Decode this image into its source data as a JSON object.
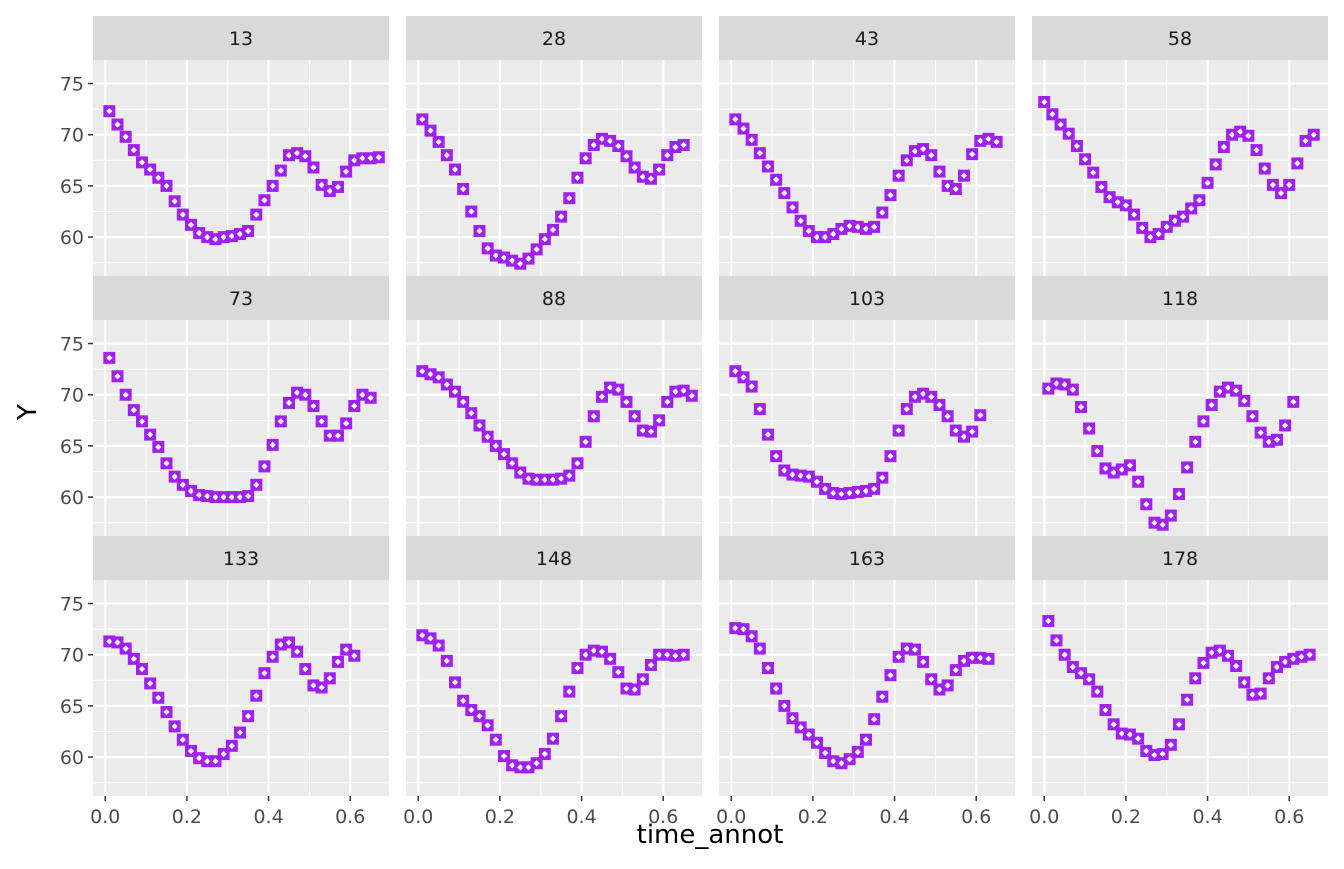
{
  "chart_data": {
    "type": "scatter",
    "facet_layout": {
      "rows": 3,
      "cols": 4
    },
    "xlabel": "time_annot",
    "ylabel": "Y",
    "xlim": [
      -0.03,
      0.695
    ],
    "ylim": [
      56.2,
      77.3
    ],
    "x_ticks": [
      0.0,
      0.2,
      0.4,
      0.6
    ],
    "x_tick_labels": [
      "0.0",
      "0.2",
      "0.4",
      "0.6"
    ],
    "y_ticks": [
      60,
      65,
      70,
      75
    ],
    "y_tick_labels": [
      "60",
      "65",
      "70",
      "75"
    ],
    "grid": true,
    "colors": {
      "point": "#A020F0",
      "panel_bg": "#EBEBEB",
      "strip_bg": "#D9D9D9",
      "grid": "#FFFFFF",
      "marker_center": "#FFFFFF"
    },
    "series": [
      {
        "panel": "13",
        "x": [
          0.01,
          0.03,
          0.05,
          0.07,
          0.09,
          0.11,
          0.13,
          0.15,
          0.17,
          0.19,
          0.21,
          0.23,
          0.25,
          0.27,
          0.29,
          0.31,
          0.33,
          0.35,
          0.37,
          0.39,
          0.41,
          0.43,
          0.45,
          0.47,
          0.49,
          0.51,
          0.53,
          0.55,
          0.57,
          0.59,
          0.61,
          0.63,
          0.65,
          0.67
        ],
        "y": [
          72.3,
          71.0,
          69.8,
          68.5,
          67.3,
          66.6,
          65.8,
          65.0,
          63.5,
          62.2,
          61.2,
          60.4,
          60.0,
          59.8,
          60.0,
          60.1,
          60.3,
          60.6,
          62.2,
          63.6,
          65.0,
          66.5,
          68.0,
          68.2,
          67.9,
          66.8,
          65.1,
          64.5,
          64.9,
          66.4,
          67.5,
          67.7,
          67.7,
          67.8
        ]
      },
      {
        "panel": "28",
        "x": [
          0.01,
          0.03,
          0.05,
          0.07,
          0.09,
          0.11,
          0.13,
          0.15,
          0.17,
          0.19,
          0.21,
          0.23,
          0.25,
          0.27,
          0.29,
          0.31,
          0.33,
          0.35,
          0.37,
          0.39,
          0.41,
          0.43,
          0.45,
          0.47,
          0.49,
          0.51,
          0.53,
          0.55,
          0.57,
          0.59,
          0.61,
          0.63,
          0.65
        ],
        "y": [
          71.5,
          70.4,
          69.3,
          68.0,
          66.6,
          64.7,
          62.5,
          60.6,
          58.9,
          58.2,
          58.0,
          57.7,
          57.4,
          57.9,
          58.8,
          59.8,
          60.7,
          62.0,
          63.8,
          65.8,
          67.7,
          69.0,
          69.6,
          69.4,
          68.9,
          67.9,
          66.8,
          65.9,
          65.7,
          66.6,
          68.0,
          68.8,
          69.0
        ]
      },
      {
        "panel": "43",
        "x": [
          0.01,
          0.03,
          0.05,
          0.07,
          0.09,
          0.11,
          0.13,
          0.15,
          0.17,
          0.19,
          0.21,
          0.23,
          0.25,
          0.27,
          0.29,
          0.31,
          0.33,
          0.35,
          0.37,
          0.39,
          0.41,
          0.43,
          0.45,
          0.47,
          0.49,
          0.51,
          0.53,
          0.55,
          0.57,
          0.59,
          0.61,
          0.63,
          0.65
        ],
        "y": [
          71.5,
          70.6,
          69.5,
          68.2,
          66.9,
          65.6,
          64.3,
          62.9,
          61.6,
          60.6,
          60.0,
          60.0,
          60.3,
          60.8,
          61.1,
          61.0,
          60.8,
          61.0,
          62.4,
          64.1,
          66.0,
          67.5,
          68.4,
          68.6,
          68.0,
          66.4,
          65.0,
          64.7,
          66.0,
          68.1,
          69.4,
          69.6,
          69.3
        ]
      },
      {
        "panel": "58",
        "x": [
          0.0,
          0.02,
          0.04,
          0.06,
          0.08,
          0.1,
          0.12,
          0.14,
          0.16,
          0.18,
          0.2,
          0.22,
          0.24,
          0.26,
          0.28,
          0.3,
          0.32,
          0.34,
          0.36,
          0.38,
          0.4,
          0.42,
          0.44,
          0.46,
          0.48,
          0.5,
          0.52,
          0.54,
          0.56,
          0.58,
          0.6,
          0.62,
          0.64,
          0.66
        ],
        "y": [
          73.2,
          72.0,
          71.0,
          70.1,
          68.9,
          67.6,
          66.3,
          64.9,
          63.9,
          63.4,
          63.1,
          62.2,
          60.9,
          60.0,
          60.3,
          61.0,
          61.6,
          62.0,
          62.8,
          63.6,
          65.3,
          67.1,
          68.8,
          70.0,
          70.3,
          69.9,
          68.5,
          66.7,
          65.1,
          64.3,
          65.1,
          67.2,
          69.4,
          70.0
        ]
      },
      {
        "panel": "73",
        "x": [
          0.01,
          0.03,
          0.05,
          0.07,
          0.09,
          0.11,
          0.13,
          0.15,
          0.17,
          0.19,
          0.21,
          0.23,
          0.25,
          0.27,
          0.29,
          0.31,
          0.33,
          0.35,
          0.37,
          0.39,
          0.41,
          0.43,
          0.45,
          0.47,
          0.49,
          0.51,
          0.53,
          0.55,
          0.57,
          0.59,
          0.61,
          0.63,
          0.65
        ],
        "y": [
          73.6,
          71.8,
          70.0,
          68.5,
          67.4,
          66.1,
          64.9,
          63.3,
          62.0,
          61.2,
          60.6,
          60.2,
          60.1,
          60.0,
          60.0,
          60.0,
          60.0,
          60.1,
          61.2,
          63.0,
          65.1,
          67.4,
          69.2,
          70.2,
          70.0,
          68.9,
          67.4,
          66.0,
          66.0,
          67.2,
          68.9,
          70.0,
          69.7
        ]
      },
      {
        "panel": "88",
        "x": [
          0.01,
          0.03,
          0.05,
          0.07,
          0.09,
          0.11,
          0.13,
          0.15,
          0.17,
          0.19,
          0.21,
          0.23,
          0.25,
          0.27,
          0.29,
          0.31,
          0.33,
          0.35,
          0.37,
          0.39,
          0.41,
          0.43,
          0.45,
          0.47,
          0.49,
          0.51,
          0.53,
          0.55,
          0.57,
          0.59,
          0.61,
          0.63,
          0.65,
          0.67
        ],
        "y": [
          72.3,
          72.0,
          71.7,
          71.0,
          70.3,
          69.3,
          68.2,
          67.0,
          65.9,
          65.0,
          64.2,
          63.3,
          62.4,
          61.8,
          61.7,
          61.7,
          61.7,
          61.8,
          62.1,
          63.3,
          65.4,
          67.9,
          69.8,
          70.7,
          70.5,
          69.3,
          67.9,
          66.5,
          66.4,
          67.5,
          69.3,
          70.3,
          70.4,
          69.9
        ]
      },
      {
        "panel": "103",
        "x": [
          0.01,
          0.03,
          0.05,
          0.07,
          0.09,
          0.11,
          0.13,
          0.15,
          0.17,
          0.19,
          0.21,
          0.23,
          0.25,
          0.27,
          0.29,
          0.31,
          0.33,
          0.35,
          0.37,
          0.39,
          0.41,
          0.43,
          0.45,
          0.47,
          0.49,
          0.51,
          0.53,
          0.55,
          0.57,
          0.59,
          0.61
        ],
        "y": [
          72.3,
          71.7,
          70.8,
          68.6,
          66.1,
          64.0,
          62.6,
          62.2,
          62.1,
          62.0,
          61.5,
          60.8,
          60.4,
          60.3,
          60.4,
          60.5,
          60.6,
          60.8,
          61.9,
          64.0,
          66.5,
          68.6,
          69.8,
          70.1,
          69.8,
          69.0,
          67.9,
          66.5,
          65.9,
          66.4,
          68.0
        ]
      },
      {
        "panel": "118",
        "x": [
          0.01,
          0.03,
          0.05,
          0.07,
          0.09,
          0.11,
          0.13,
          0.15,
          0.17,
          0.19,
          0.21,
          0.23,
          0.25,
          0.27,
          0.29,
          0.31,
          0.33,
          0.35,
          0.37,
          0.39,
          0.41,
          0.43,
          0.45,
          0.47,
          0.49,
          0.51,
          0.53,
          0.55,
          0.57,
          0.59,
          0.61
        ],
        "y": [
          70.6,
          71.1,
          71.0,
          70.5,
          68.8,
          66.7,
          64.5,
          62.8,
          62.4,
          62.7,
          63.1,
          61.5,
          59.3,
          57.5,
          57.3,
          58.2,
          60.3,
          62.9,
          65.4,
          67.4,
          69.0,
          70.3,
          70.7,
          70.4,
          69.4,
          67.9,
          66.3,
          65.4,
          65.6,
          67.0,
          69.3
        ]
      },
      {
        "panel": "133",
        "x": [
          0.01,
          0.03,
          0.05,
          0.07,
          0.09,
          0.11,
          0.13,
          0.15,
          0.17,
          0.19,
          0.21,
          0.23,
          0.25,
          0.27,
          0.29,
          0.31,
          0.33,
          0.35,
          0.37,
          0.39,
          0.41,
          0.43,
          0.45,
          0.47,
          0.49,
          0.51,
          0.53,
          0.55,
          0.57,
          0.59,
          0.61
        ],
        "y": [
          71.3,
          71.2,
          70.6,
          69.6,
          68.6,
          67.2,
          65.8,
          64.4,
          63.0,
          61.7,
          60.6,
          59.9,
          59.6,
          59.6,
          60.3,
          61.1,
          62.4,
          64.0,
          66.0,
          68.2,
          69.8,
          71.0,
          71.2,
          70.3,
          68.6,
          67.0,
          66.8,
          67.7,
          69.3,
          70.5,
          69.9
        ]
      },
      {
        "panel": "148",
        "x": [
          0.01,
          0.03,
          0.05,
          0.07,
          0.09,
          0.11,
          0.13,
          0.15,
          0.17,
          0.19,
          0.21,
          0.23,
          0.25,
          0.27,
          0.29,
          0.31,
          0.33,
          0.35,
          0.37,
          0.39,
          0.41,
          0.43,
          0.45,
          0.47,
          0.49,
          0.51,
          0.53,
          0.55,
          0.57,
          0.59,
          0.61,
          0.63,
          0.65
        ],
        "y": [
          71.9,
          71.6,
          70.9,
          69.4,
          67.3,
          65.5,
          64.6,
          64.0,
          63.1,
          61.7,
          60.1,
          59.2,
          59.0,
          59.0,
          59.4,
          60.3,
          61.8,
          64.0,
          66.4,
          68.7,
          70.0,
          70.4,
          70.3,
          69.6,
          68.3,
          66.7,
          66.6,
          67.6,
          69.0,
          70.0,
          70.0,
          69.9,
          70.0
        ]
      },
      {
        "panel": "163",
        "x": [
          0.01,
          0.03,
          0.05,
          0.07,
          0.09,
          0.11,
          0.13,
          0.15,
          0.17,
          0.19,
          0.21,
          0.23,
          0.25,
          0.27,
          0.29,
          0.31,
          0.33,
          0.35,
          0.37,
          0.39,
          0.41,
          0.43,
          0.45,
          0.47,
          0.49,
          0.51,
          0.53,
          0.55,
          0.57,
          0.59,
          0.61,
          0.63
        ],
        "y": [
          72.6,
          72.5,
          71.8,
          70.6,
          68.7,
          66.7,
          65.0,
          63.8,
          62.9,
          62.2,
          61.4,
          60.4,
          59.6,
          59.4,
          59.8,
          60.5,
          61.7,
          63.7,
          65.9,
          68.0,
          69.8,
          70.6,
          70.5,
          69.3,
          67.6,
          66.6,
          67.0,
          68.5,
          69.4,
          69.7,
          69.7,
          69.6
        ]
      },
      {
        "panel": "178",
        "x": [
          0.01,
          0.03,
          0.05,
          0.07,
          0.09,
          0.11,
          0.13,
          0.15,
          0.17,
          0.19,
          0.21,
          0.23,
          0.25,
          0.27,
          0.29,
          0.31,
          0.33,
          0.35,
          0.37,
          0.39,
          0.41,
          0.43,
          0.45,
          0.47,
          0.49,
          0.51,
          0.53,
          0.55,
          0.57,
          0.59,
          0.61,
          0.63,
          0.65
        ],
        "y": [
          73.3,
          71.4,
          70.0,
          68.8,
          68.2,
          67.6,
          66.4,
          64.6,
          63.2,
          62.3,
          62.2,
          61.8,
          60.6,
          60.2,
          60.3,
          61.2,
          63.2,
          65.6,
          67.7,
          69.2,
          70.2,
          70.4,
          69.9,
          68.9,
          67.3,
          66.1,
          66.2,
          67.7,
          68.8,
          69.3,
          69.6,
          69.8,
          70.0
        ]
      }
    ]
  }
}
